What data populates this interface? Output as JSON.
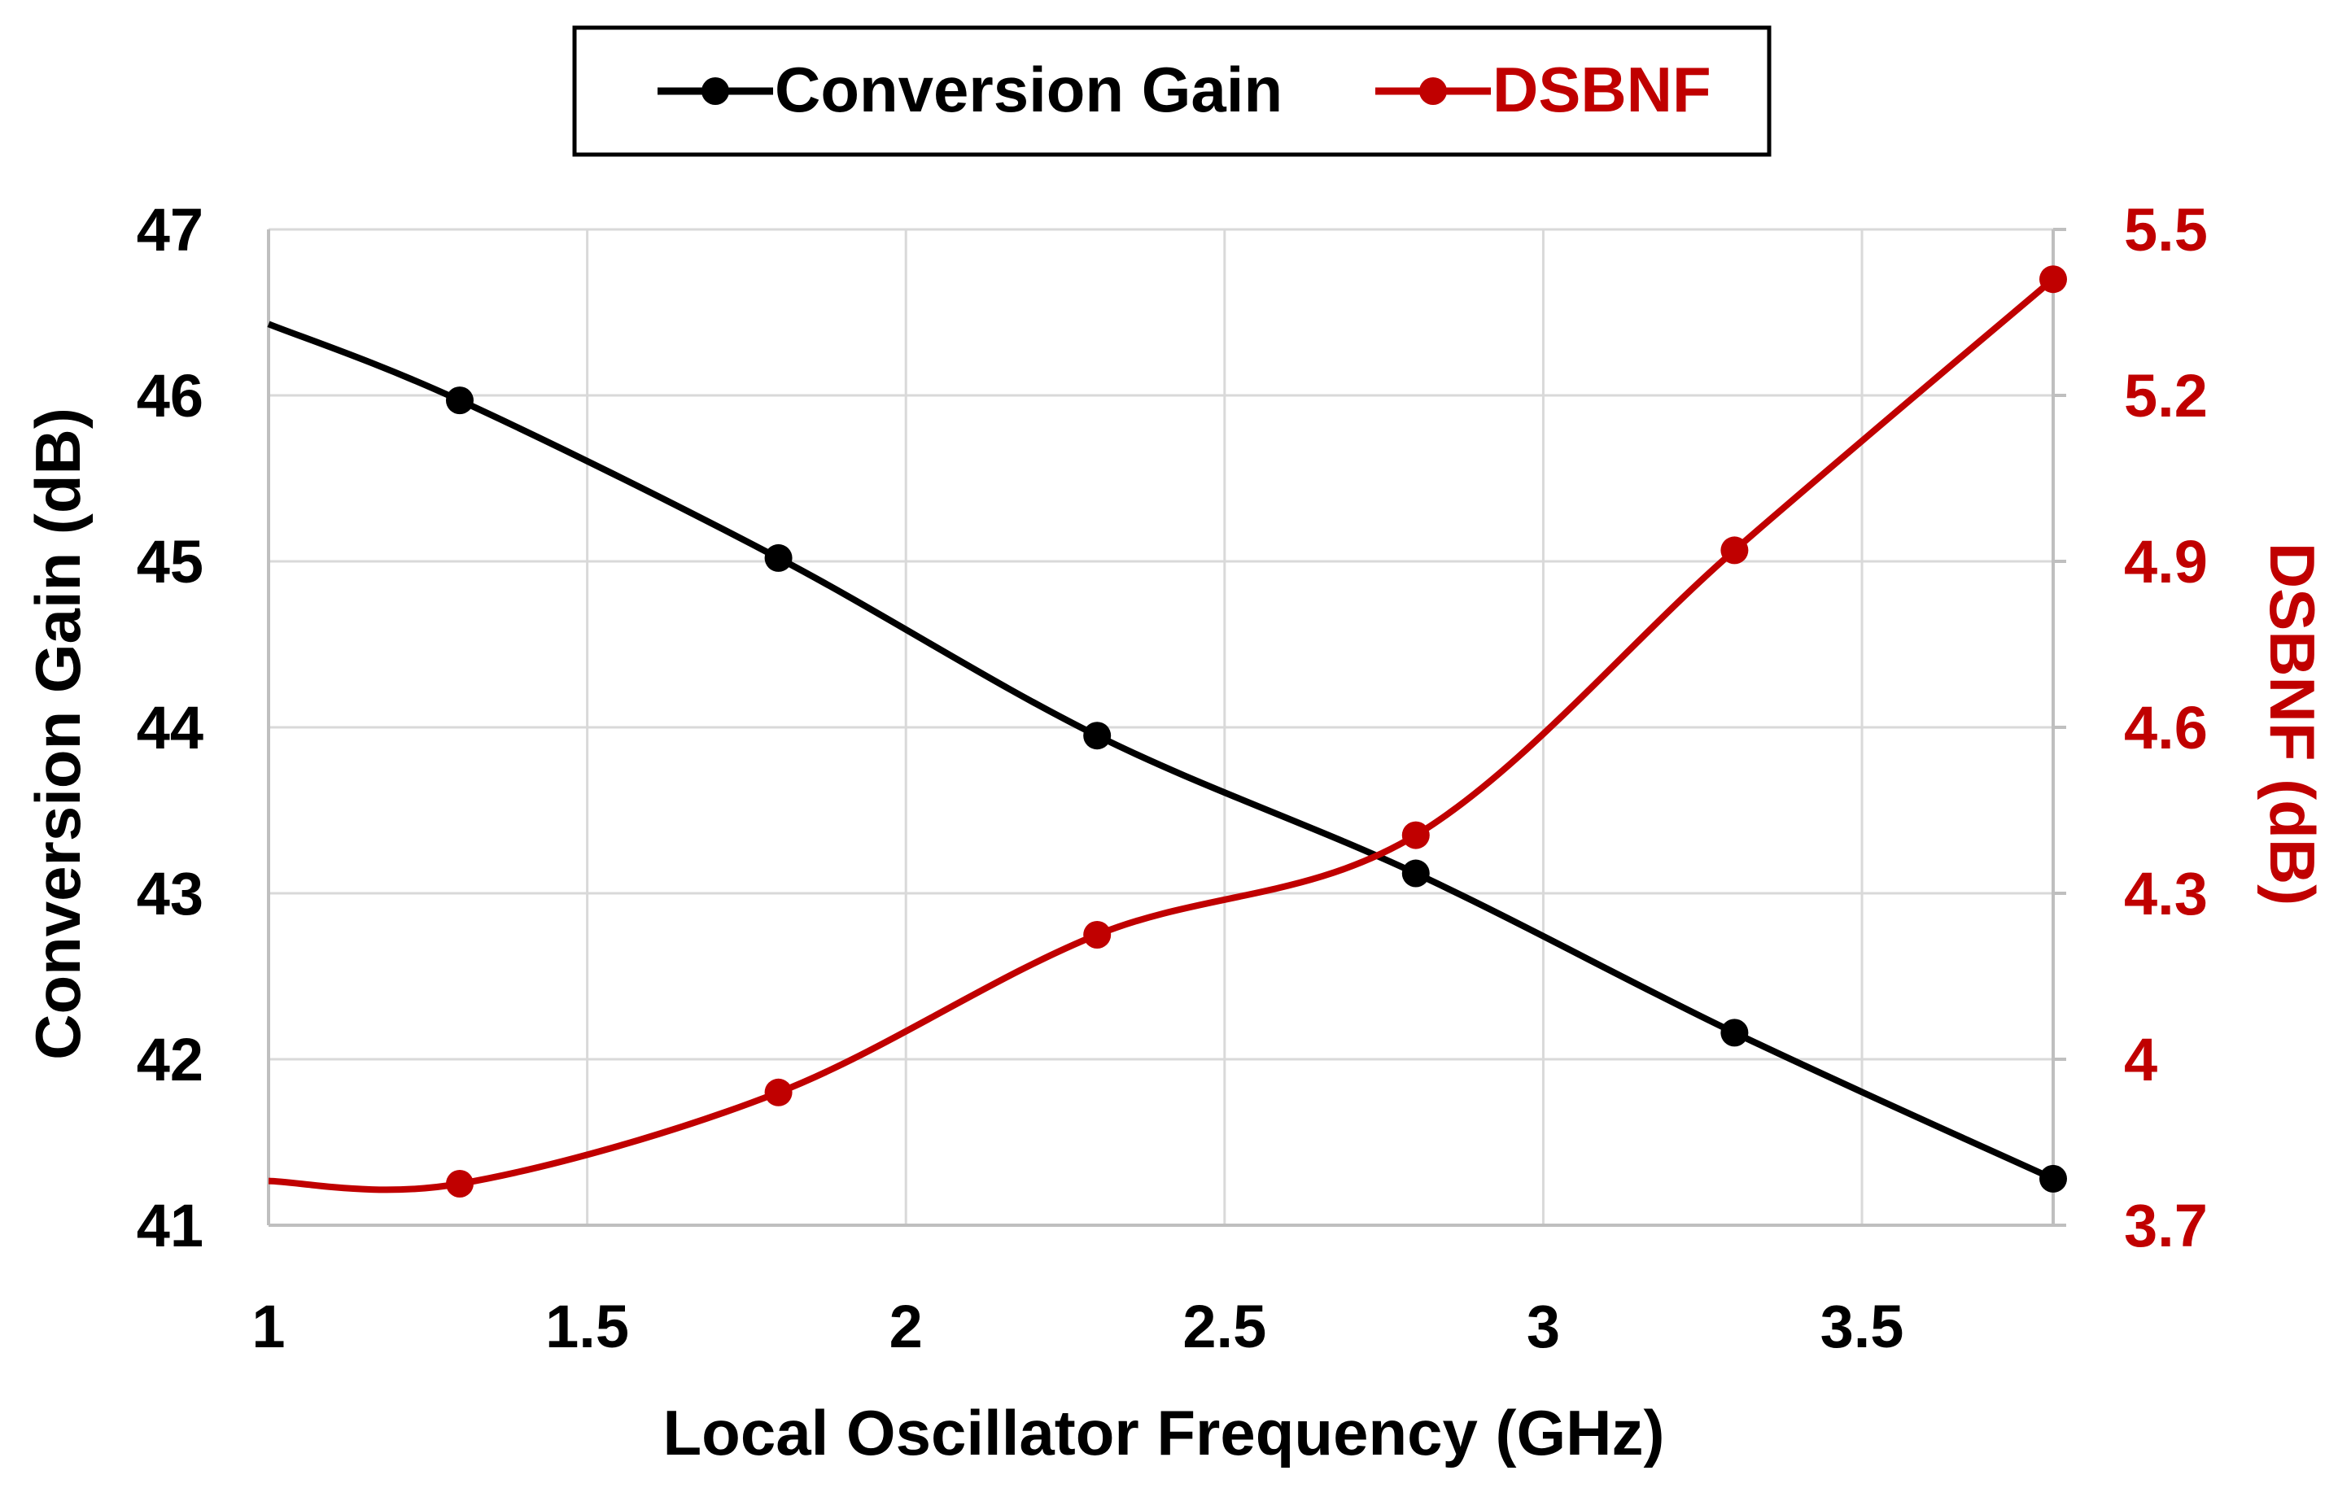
{
  "chart_data": {
    "type": "line",
    "title": "",
    "xlabel": "Local Oscillator Frequency (GHz)",
    "ylabel": "Conversion Gain (dB)",
    "y2label": "DSBNF (dB)",
    "xlim": [
      1,
      3.8
    ],
    "ylim": [
      41,
      47
    ],
    "y2lim": [
      3.7,
      5.5
    ],
    "xticks": [
      "1",
      "1.5",
      "2",
      "2.5",
      "3",
      "3.5"
    ],
    "xtick_values": [
      1,
      1.5,
      2,
      2.5,
      3,
      3.5
    ],
    "yticks": [
      "41",
      "42",
      "43",
      "44",
      "45",
      "46",
      "47"
    ],
    "ytick_values": [
      41,
      42,
      43,
      44,
      45,
      46,
      47
    ],
    "y2ticks": [
      "3.7",
      "4",
      "4.3",
      "4.6",
      "4.9",
      "5.2",
      "5.5"
    ],
    "y2tick_values": [
      3.7,
      4.0,
      4.3,
      4.6,
      4.9,
      5.2,
      5.5
    ],
    "grid": true,
    "legend_position": "top-center",
    "series": [
      {
        "name": "Conversion Gain",
        "axis": "left",
        "color": "#000000",
        "smooth": true,
        "x": [
          1.0,
          1.3,
          1.8,
          2.3,
          2.8,
          3.3,
          3.8
        ],
        "values": [
          46.43,
          45.97,
          45.02,
          43.95,
          43.12,
          42.16,
          41.28
        ],
        "markers": [
          false,
          true,
          true,
          true,
          true,
          true,
          true
        ]
      },
      {
        "name": "DSBNF",
        "axis": "right",
        "color": "#c00000",
        "smooth": true,
        "x": [
          1.0,
          1.3,
          1.8,
          2.3,
          2.8,
          3.3,
          3.8
        ],
        "values": [
          3.78,
          3.775,
          3.94,
          4.225,
          4.405,
          4.92,
          5.41
        ],
        "markers": [
          false,
          true,
          true,
          true,
          true,
          true,
          true
        ]
      }
    ]
  }
}
